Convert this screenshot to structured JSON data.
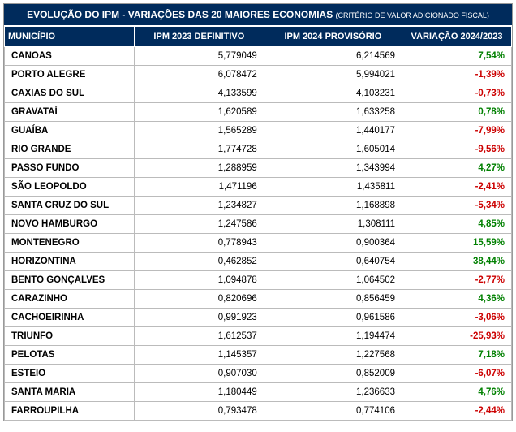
{
  "title_main": "EVOLUÇÃO DO IPM - VARIAÇÕES DAS 20 MAIORES ECONOMIAS ",
  "title_sub": "(CRITÉRIO DE VALOR ADICIONADO FISCAL)",
  "headers": {
    "municipio": "MUNICÍPIO",
    "ipm2023": "IPM 2023 DEFINITIVO",
    "ipm2024": "IPM 2024 PROVISÓRIO",
    "variacao": "VARIAÇÃO 2024/2023"
  },
  "rows": [
    {
      "mun": "CANOAS",
      "v23": "5,779049",
      "v24": "6,214569",
      "var": "7,54%",
      "dir": "pos"
    },
    {
      "mun": "PORTO ALEGRE",
      "v23": "6,078472",
      "v24": "5,994021",
      "var": "-1,39%",
      "dir": "neg"
    },
    {
      "mun": "CAXIAS DO SUL",
      "v23": "4,133599",
      "v24": "4,103231",
      "var": "-0,73%",
      "dir": "neg"
    },
    {
      "mun": "GRAVATAÍ",
      "v23": "1,620589",
      "v24": "1,633258",
      "var": "0,78%",
      "dir": "pos"
    },
    {
      "mun": "GUAÍBA",
      "v23": "1,565289",
      "v24": "1,440177",
      "var": "-7,99%",
      "dir": "neg"
    },
    {
      "mun": "RIO GRANDE",
      "v23": "1,774728",
      "v24": "1,605014",
      "var": "-9,56%",
      "dir": "neg"
    },
    {
      "mun": "PASSO FUNDO",
      "v23": "1,288959",
      "v24": "1,343994",
      "var": "4,27%",
      "dir": "pos"
    },
    {
      "mun": "SÃO LEOPOLDO",
      "v23": "1,471196",
      "v24": "1,435811",
      "var": "-2,41%",
      "dir": "neg"
    },
    {
      "mun": "SANTA CRUZ DO SUL",
      "v23": "1,234827",
      "v24": "1,168898",
      "var": "-5,34%",
      "dir": "neg"
    },
    {
      "mun": "NOVO HAMBURGO",
      "v23": "1,247586",
      "v24": "1,308111",
      "var": "4,85%",
      "dir": "pos"
    },
    {
      "mun": "MONTENEGRO",
      "v23": "0,778943",
      "v24": "0,900364",
      "var": "15,59%",
      "dir": "pos"
    },
    {
      "mun": "HORIZONTINA",
      "v23": "0,462852",
      "v24": "0,640754",
      "var": "38,44%",
      "dir": "pos"
    },
    {
      "mun": "BENTO GONÇALVES",
      "v23": "1,094878",
      "v24": "1,064502",
      "var": "-2,77%",
      "dir": "neg"
    },
    {
      "mun": "CARAZINHO",
      "v23": "0,820696",
      "v24": "0,856459",
      "var": "4,36%",
      "dir": "pos"
    },
    {
      "mun": "CACHOEIRINHA",
      "v23": "0,991923",
      "v24": "0,961586",
      "var": "-3,06%",
      "dir": "neg"
    },
    {
      "mun": "TRIUNFO",
      "v23": "1,612537",
      "v24": "1,194474",
      "var": "-25,93%",
      "dir": "neg"
    },
    {
      "mun": "PELOTAS",
      "v23": "1,145357",
      "v24": "1,227568",
      "var": "7,18%",
      "dir": "pos"
    },
    {
      "mun": "ESTEIO",
      "v23": "0,907030",
      "v24": "0,852009",
      "var": "-6,07%",
      "dir": "neg"
    },
    {
      "mun": "SANTA MARIA",
      "v23": "1,180449",
      "v24": "1,236633",
      "var": "4,76%",
      "dir": "pos"
    },
    {
      "mun": "FARROUPILHA",
      "v23": "0,793478",
      "v24": "0,774106",
      "var": "-2,44%",
      "dir": "neg"
    }
  ]
}
